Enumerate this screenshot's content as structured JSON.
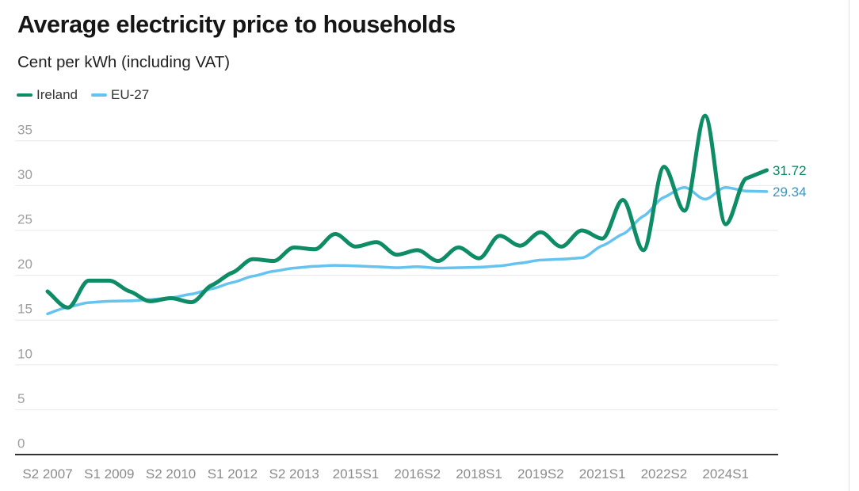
{
  "title": "Average electricity price to households",
  "subtitle": "Cent per kWh (including VAT)",
  "legend": [
    {
      "label": "Ireland",
      "color": "#0e8c66"
    },
    {
      "label": "EU-27",
      "color": "#64c3ef"
    }
  ],
  "chart_data": {
    "type": "line",
    "title": "Average electricity price to households",
    "subtitle": "Cent per kWh (including VAT)",
    "categories": [
      "S2 2007",
      "S1 2008",
      "S2 2008",
      "S1 2009",
      "S2 2009",
      "S1 2010",
      "S2 2010",
      "S1 2011",
      "S2 2011",
      "S1 2012",
      "S2 2012",
      "S1 2013",
      "S2 2013",
      "S1 2014",
      "S2 2014",
      "S1 2015",
      "S2 2015",
      "S1 2016",
      "S2 2016",
      "S1 2017",
      "S2 2017",
      "S1 2018",
      "S2 2018",
      "S1 2019",
      "S2 2019",
      "S1 2020",
      "S2 2020",
      "S1 2021",
      "S2 2021",
      "S1 2022",
      "S2 2022",
      "S1 2023",
      "S2 2023",
      "S1 2024",
      "S2 2024",
      "S1 2025"
    ],
    "series": [
      {
        "name": "Ireland",
        "color": "#0e8c66",
        "label_color": "#0e8161",
        "end_label": "31.72",
        "values": [
          18.2,
          16.4,
          19.4,
          19.4,
          18.2,
          17.1,
          17.45,
          17.0,
          18.9,
          20.3,
          21.8,
          21.6,
          23.1,
          22.9,
          24.6,
          23.2,
          23.7,
          22.3,
          22.8,
          21.6,
          23.1,
          21.9,
          24.4,
          23.3,
          24.8,
          23.2,
          25.0,
          24.1,
          28.4,
          22.8,
          32.1,
          27.2,
          37.8,
          25.7,
          30.8,
          31.72
        ]
      },
      {
        "name": "EU-27",
        "color": "#64c3ef",
        "label_color": "#3e93c1",
        "end_label": "29.34",
        "values": [
          15.7,
          16.45,
          16.95,
          17.1,
          17.15,
          17.3,
          17.5,
          17.9,
          18.5,
          19.2,
          19.9,
          20.45,
          20.8,
          21.0,
          21.1,
          21.05,
          20.95,
          20.85,
          20.95,
          20.8,
          20.85,
          20.9,
          21.05,
          21.35,
          21.7,
          21.8,
          21.95,
          23.3,
          24.6,
          26.6,
          28.7,
          29.8,
          28.5,
          29.8,
          29.4,
          29.34
        ]
      }
    ],
    "x_tick_labels": [
      {
        "index": 0,
        "text": "S2 2007"
      },
      {
        "index": 3,
        "text": "S1 2009"
      },
      {
        "index": 6,
        "text": "S2 2010"
      },
      {
        "index": 9,
        "text": "S1 2012"
      },
      {
        "index": 12,
        "text": "S2 2013"
      },
      {
        "index": 15,
        "text": "2015S1"
      },
      {
        "index": 18,
        "text": "2016S2"
      },
      {
        "index": 21,
        "text": "2018S1"
      },
      {
        "index": 24,
        "text": "2019S2"
      },
      {
        "index": 27,
        "text": "2021S1"
      },
      {
        "index": 30,
        "text": "2022S2"
      },
      {
        "index": 33,
        "text": "2024S1"
      }
    ],
    "y_ticks": [
      0,
      5,
      10,
      15,
      20,
      25,
      30,
      35
    ],
    "ylim": [
      0,
      38.5
    ],
    "grid": true,
    "legend_position": "top-left"
  },
  "colors": {
    "grid": "#e8e8e8",
    "axis": "#141414",
    "y_tick_text": "#9e9e9e",
    "x_tick_text": "#8b8b8b",
    "background": "#ffffff",
    "right_edge": "#e0e0e0"
  }
}
